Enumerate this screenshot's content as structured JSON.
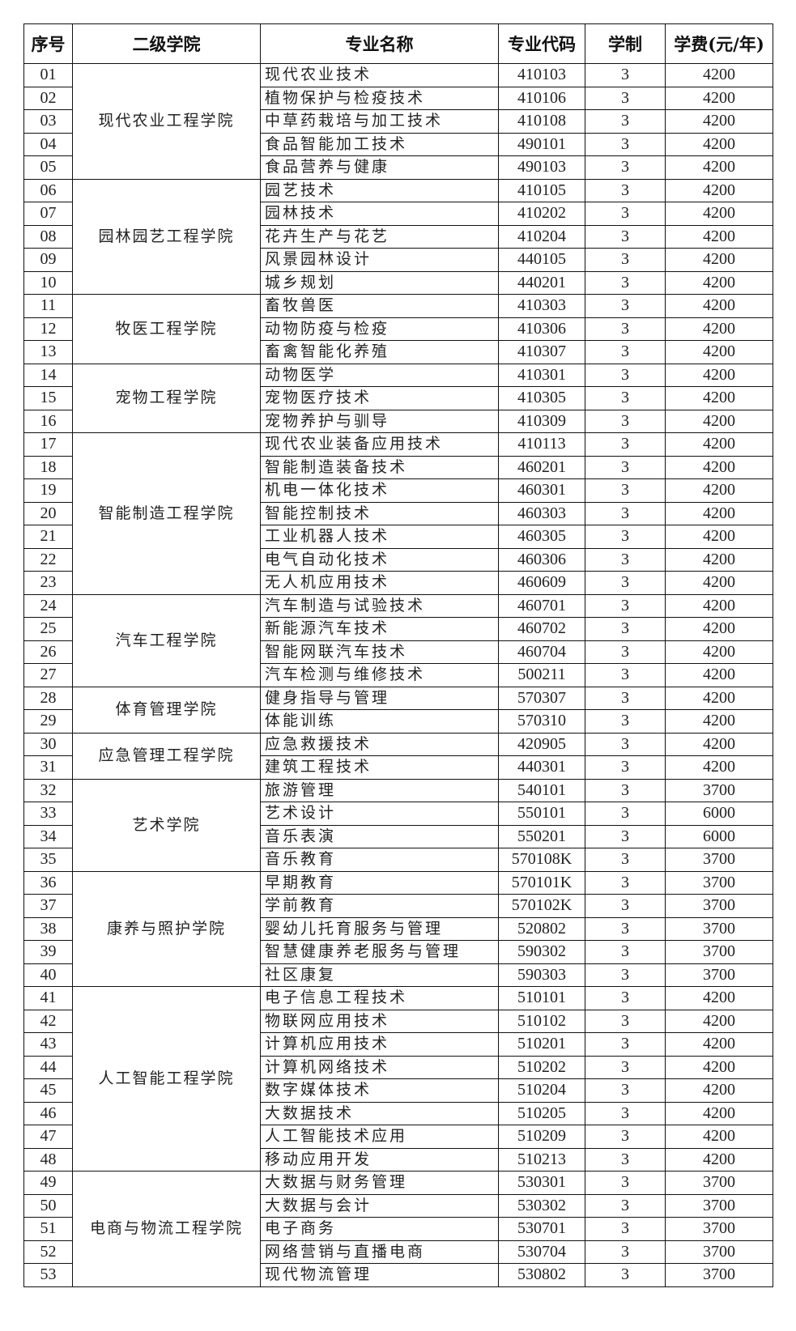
{
  "headers": [
    "序号",
    "二级学院",
    "专业名称",
    "专业代码",
    "学制",
    "学费(元/年)"
  ],
  "colleges": [
    {
      "name": "现代农业工程学院",
      "rows": [
        [
          "01",
          "现代农业技术",
          "410103",
          "3",
          "4200"
        ],
        [
          "02",
          "植物保护与检疫技术",
          "410106",
          "3",
          "4200"
        ],
        [
          "03",
          "中草药栽培与加工技术",
          "410108",
          "3",
          "4200"
        ],
        [
          "04",
          "食品智能加工技术",
          "490101",
          "3",
          "4200"
        ],
        [
          "05",
          "食品营养与健康",
          "490103",
          "3",
          "4200"
        ]
      ]
    },
    {
      "name": "园林园艺工程学院",
      "rows": [
        [
          "06",
          "园艺技术",
          "410105",
          "3",
          "4200"
        ],
        [
          "07",
          "园林技术",
          "410202",
          "3",
          "4200"
        ],
        [
          "08",
          "花卉生产与花艺",
          "410204",
          "3",
          "4200"
        ],
        [
          "09",
          "风景园林设计",
          "440105",
          "3",
          "4200"
        ],
        [
          "10",
          "城乡规划",
          "440201",
          "3",
          "4200"
        ]
      ]
    },
    {
      "name": "牧医工程学院",
      "rows": [
        [
          "11",
          "畜牧兽医",
          "410303",
          "3",
          "4200"
        ],
        [
          "12",
          "动物防疫与检疫",
          "410306",
          "3",
          "4200"
        ],
        [
          "13",
          "畜禽智能化养殖",
          "410307",
          "3",
          "4200"
        ]
      ]
    },
    {
      "name": "宠物工程学院",
      "rows": [
        [
          "14",
          "动物医学",
          "410301",
          "3",
          "4200"
        ],
        [
          "15",
          "宠物医疗技术",
          "410305",
          "3",
          "4200"
        ],
        [
          "16",
          "宠物养护与驯导",
          "410309",
          "3",
          "4200"
        ]
      ]
    },
    {
      "name": "智能制造工程学院",
      "rows": [
        [
          "17",
          "现代农业装备应用技术",
          "410113",
          "3",
          "4200"
        ],
        [
          "18",
          "智能制造装备技术",
          "460201",
          "3",
          "4200"
        ],
        [
          "19",
          "机电一体化技术",
          "460301",
          "3",
          "4200"
        ],
        [
          "20",
          "智能控制技术",
          "460303",
          "3",
          "4200"
        ],
        [
          "21",
          "工业机器人技术",
          "460305",
          "3",
          "4200"
        ],
        [
          "22",
          "电气自动化技术",
          "460306",
          "3",
          "4200"
        ],
        [
          "23",
          "无人机应用技术",
          "460609",
          "3",
          "4200"
        ]
      ]
    },
    {
      "name": "汽车工程学院",
      "rows": [
        [
          "24",
          "汽车制造与试验技术",
          "460701",
          "3",
          "4200"
        ],
        [
          "25",
          "新能源汽车技术",
          "460702",
          "3",
          "4200"
        ],
        [
          "26",
          "智能网联汽车技术",
          "460704",
          "3",
          "4200"
        ],
        [
          "27",
          "汽车检测与维修技术",
          "500211",
          "3",
          "4200"
        ]
      ]
    },
    {
      "name": "体育管理学院",
      "rows": [
        [
          "28",
          "健身指导与管理",
          "570307",
          "3",
          "4200"
        ],
        [
          "29",
          "体能训练",
          "570310",
          "3",
          "4200"
        ]
      ]
    },
    {
      "name": "应急管理工程学院",
      "rows": [
        [
          "30",
          "应急救援技术",
          "420905",
          "3",
          "4200"
        ],
        [
          "31",
          "建筑工程技术",
          "440301",
          "3",
          "4200"
        ]
      ]
    },
    {
      "name": "艺术学院",
      "rows": [
        [
          "32",
          "旅游管理",
          "540101",
          "3",
          "3700"
        ],
        [
          "33",
          "艺术设计",
          "550101",
          "3",
          "6000"
        ],
        [
          "34",
          "音乐表演",
          "550201",
          "3",
          "6000"
        ],
        [
          "35",
          "音乐教育",
          "570108K",
          "3",
          "3700"
        ]
      ]
    },
    {
      "name": "康养与照护学院",
      "rows": [
        [
          "36",
          "早期教育",
          "570101K",
          "3",
          "3700"
        ],
        [
          "37",
          "学前教育",
          "570102K",
          "3",
          "3700"
        ],
        [
          "38",
          "婴幼儿托育服务与管理",
          "520802",
          "3",
          "3700"
        ],
        [
          "39",
          "智慧健康养老服务与管理",
          "590302",
          "3",
          "3700"
        ],
        [
          "40",
          "社区康复",
          "590303",
          "3",
          "3700"
        ]
      ]
    },
    {
      "name": "人工智能工程学院",
      "rows": [
        [
          "41",
          "电子信息工程技术",
          "510101",
          "3",
          "4200"
        ],
        [
          "42",
          "物联网应用技术",
          "510102",
          "3",
          "4200"
        ],
        [
          "43",
          "计算机应用技术",
          "510201",
          "3",
          "4200"
        ],
        [
          "44",
          "计算机网络技术",
          "510202",
          "3",
          "4200"
        ],
        [
          "45",
          "数字媒体技术",
          "510204",
          "3",
          "4200"
        ],
        [
          "46",
          "大数据技术",
          "510205",
          "3",
          "4200"
        ],
        [
          "47",
          "人工智能技术应用",
          "510209",
          "3",
          "4200"
        ],
        [
          "48",
          "移动应用开发",
          "510213",
          "3",
          "4200"
        ]
      ]
    },
    {
      "name": "电商与物流工程学院",
      "rows": [
        [
          "49",
          "大数据与财务管理",
          "530301",
          "3",
          "3700"
        ],
        [
          "50",
          "大数据与会计",
          "530302",
          "3",
          "3700"
        ],
        [
          "51",
          "电子商务",
          "530701",
          "3",
          "3700"
        ],
        [
          "52",
          "网络营销与直播电商",
          "530704",
          "3",
          "3700"
        ],
        [
          "53",
          "现代物流管理",
          "530802",
          "3",
          "3700"
        ]
      ]
    }
  ]
}
